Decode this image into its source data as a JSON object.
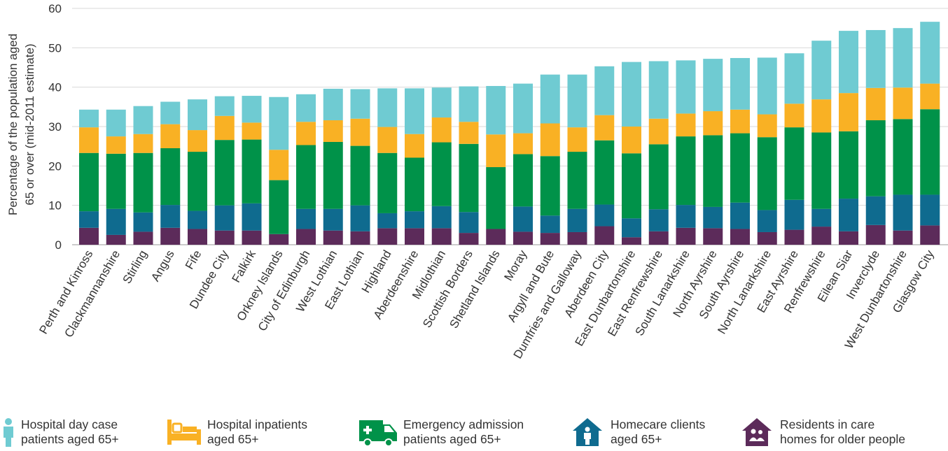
{
  "chart_data": {
    "type": "bar",
    "stacked": true,
    "ylabel": "Percentage of the population aged 65 or over (mid-2011 estimate)",
    "ylim": [
      0,
      60
    ],
    "yticks": [
      0,
      10,
      20,
      30,
      40,
      50,
      60
    ],
    "grid": true,
    "legend_position": "bottom",
    "categories": [
      "Perth and Kinross",
      "Clackmannanshire",
      "Stirling",
      "Angus",
      "Fife",
      "Dundee City",
      "Falkirk",
      "Orkney Islands",
      "City of Edinburgh",
      "West Lothian",
      "East Lothian",
      "Highland",
      "Aberdeenshire",
      "Midlothian",
      "Scottish Borders",
      "Shetland Islands",
      "Moray",
      "Argyll and Bute",
      "Dumfries and Galloway",
      "Aberdeen City",
      "East Dunbartonshire",
      "East Renfrewshire",
      "South Lanarkshire",
      "North Ayrshire",
      "South Ayrshire",
      "North Lanarkshire",
      "East Ayrshire",
      "Renfrewshire",
      "Eilean Siar",
      "Inverclyde",
      "West Dunbartonshire",
      "Glasgow City"
    ],
    "series": [
      {
        "name": "Residents in care homes for older people",
        "color": "#5c2b5a",
        "values": [
          4.3,
          2.5,
          3.3,
          4.3,
          4.0,
          3.6,
          3.6,
          2.7,
          4.0,
          3.6,
          3.4,
          4.2,
          4.2,
          4.2,
          3.0,
          4.0,
          3.3,
          3.0,
          3.2,
          4.7,
          1.9,
          3.4,
          4.3,
          4.2,
          4.0,
          3.2,
          3.8,
          4.6,
          3.4,
          5.0,
          3.6,
          4.9
        ]
      },
      {
        "name": "Homecare clients aged 65+",
        "color": "#0f6b8f",
        "values": [
          4.2,
          6.6,
          4.9,
          5.8,
          4.6,
          6.4,
          6.9,
          0.0,
          5.1,
          5.5,
          6.6,
          3.8,
          4.3,
          5.6,
          5.3,
          0.0,
          6.4,
          4.4,
          5.9,
          5.5,
          4.8,
          5.6,
          5.8,
          5.4,
          6.7,
          5.6,
          7.6,
          4.5,
          8.3,
          7.3,
          9.1,
          7.8
        ]
      },
      {
        "name": "Emergency admission patients aged 65+",
        "color": "#009249",
        "values": [
          14.8,
          14.0,
          15.1,
          14.4,
          15.0,
          16.6,
          16.2,
          13.7,
          16.2,
          17.0,
          15.1,
          15.3,
          13.6,
          16.2,
          17.3,
          15.7,
          13.3,
          15.1,
          14.5,
          16.3,
          16.5,
          16.5,
          17.4,
          18.2,
          17.6,
          18.5,
          18.4,
          19.4,
          17.1,
          19.3,
          19.2,
          21.7
        ]
      },
      {
        "name": "Hospital inpatients aged 65+",
        "color": "#f9b124",
        "values": [
          6.5,
          4.4,
          4.8,
          6.1,
          5.5,
          6.1,
          4.3,
          7.7,
          5.9,
          5.5,
          6.9,
          6.6,
          6.0,
          6.3,
          5.6,
          8.3,
          5.3,
          8.3,
          6.2,
          6.4,
          6.8,
          6.5,
          5.8,
          6.1,
          6.0,
          5.8,
          6.0,
          8.4,
          9.7,
          8.2,
          8.0,
          6.5
        ]
      },
      {
        "name": "Hospital day case patients aged 65+",
        "color": "#6fcbd2",
        "values": [
          4.5,
          6.8,
          7.1,
          5.7,
          7.8,
          5.0,
          6.8,
          13.4,
          7.0,
          8.0,
          7.5,
          9.8,
          11.6,
          7.6,
          9.0,
          12.3,
          12.6,
          12.4,
          13.4,
          12.4,
          16.4,
          14.6,
          13.5,
          13.3,
          13.1,
          14.4,
          12.8,
          14.9,
          15.8,
          14.7,
          15.1,
          15.7
        ]
      }
    ]
  },
  "legend": [
    {
      "icon": "person-icon",
      "label_line1": "Hospital day case",
      "label_line2": "patients aged 65+",
      "color": "#6fcbd2"
    },
    {
      "icon": "bed-icon",
      "label_line1": "Hospital inpatients",
      "label_line2": "aged 65+",
      "color": "#f9b124"
    },
    {
      "icon": "ambulance-icon",
      "label_line1": "Emergency admission",
      "label_line2": "patients aged 65+",
      "color": "#009249"
    },
    {
      "icon": "house-person-icon",
      "label_line1": "Homecare clients",
      "label_line2": "aged 65+",
      "color": "#0f6b8f"
    },
    {
      "icon": "house-people-icon",
      "label_line1": "Residents in care",
      "label_line2": "homes for older people",
      "color": "#5c2b5a"
    }
  ]
}
